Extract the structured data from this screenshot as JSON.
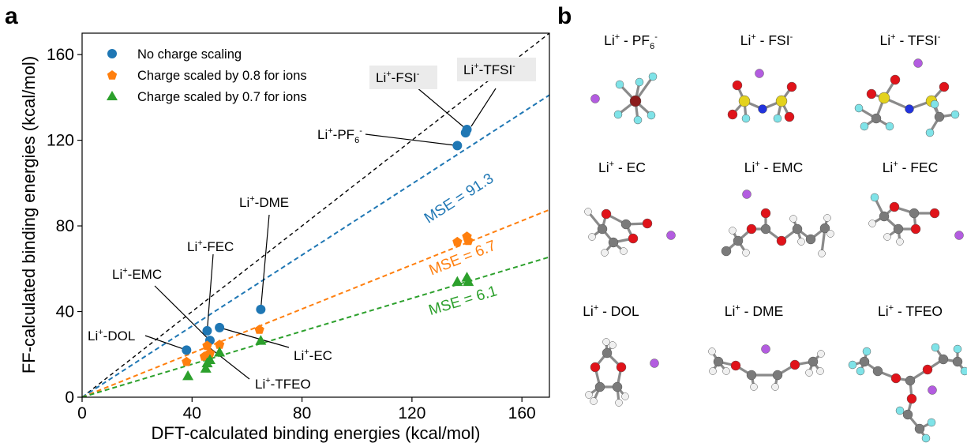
{
  "figure": {
    "panel_a_letter": "a",
    "panel_b_letter": "b"
  },
  "chart_data": {
    "type": "scatter",
    "xlabel": "DFT-calculated binding energies (kcal/mol)",
    "ylabel": "FF-calculated binding energies (kcal/mol)",
    "xlim": [
      0,
      170
    ],
    "ylim": [
      0,
      170
    ],
    "xticks": [
      0,
      40,
      80,
      120,
      160
    ],
    "yticks": [
      0,
      40,
      80,
      120,
      160
    ],
    "grid": false,
    "legend_position": "top-left",
    "series": [
      {
        "name": "No charge scaling",
        "color": "#1f77b4",
        "marker": "circle",
        "points": [
          [
            38.0,
            22.0
          ],
          [
            45.5,
            31.0
          ],
          [
            46.5,
            26.5
          ],
          [
            50.0,
            32.5
          ],
          [
            65.0,
            41.0
          ],
          [
            136.5,
            117.5
          ],
          [
            139.5,
            123.5
          ],
          [
            140.0,
            125.0
          ]
        ]
      },
      {
        "name": "Charge scaled by 0.8 for ions",
        "color": "#ff7f0e",
        "marker": "pentagon",
        "points": [
          [
            38.0,
            16.5
          ],
          [
            44.5,
            19.0
          ],
          [
            45.5,
            24.0
          ],
          [
            46.5,
            20.5
          ],
          [
            50.0,
            24.5
          ],
          [
            64.5,
            31.5
          ],
          [
            136.5,
            72.5
          ],
          [
            140.0,
            75.0
          ],
          [
            140.5,
            73.0
          ]
        ]
      },
      {
        "name": "Charge scaled by 0.7 for ions",
        "color": "#2ca02c",
        "marker": "triangle",
        "points": [
          [
            38.5,
            10.0
          ],
          [
            45.0,
            13.5
          ],
          [
            45.5,
            16.0
          ],
          [
            46.5,
            17.5
          ],
          [
            50.0,
            21.0
          ],
          [
            65.0,
            26.5
          ],
          [
            136.5,
            54.0
          ],
          [
            140.0,
            56.0
          ],
          [
            140.5,
            54.0
          ]
        ]
      }
    ],
    "reference_line": {
      "label": "",
      "color": "#000000",
      "slope": 1.0
    },
    "fit_lines": [
      {
        "series": "No charge scaling",
        "slope": 0.83,
        "mse_label": "MSE = 91.3",
        "label_x": 138,
        "label_y": 91
      },
      {
        "series": "Charge scaled by 0.8 for ions",
        "slope": 0.515,
        "mse_label": "MSE = 6.7",
        "label_x": 139,
        "label_y": 63
      },
      {
        "series": "Charge scaled by 0.7 for ions",
        "slope": 0.385,
        "mse_label": "MSE = 6.1",
        "label_x": 139,
        "label_y": 43
      }
    ],
    "annotations": [
      {
        "id": "fsi",
        "base": "Li",
        "sup": "+",
        "rest": "-FSI",
        "sup2": "-",
        "sub": "",
        "boxed": true
      },
      {
        "id": "tfsi",
        "base": "Li",
        "sup": "+",
        "rest": "-TFSI",
        "sup2": "-",
        "sub": "",
        "boxed": true
      },
      {
        "id": "pf6",
        "base": "Li",
        "sup": "+",
        "rest": "-PF",
        "sub": "6",
        "sup2": "-",
        "boxed": false
      },
      {
        "id": "dme",
        "base": "Li",
        "sup": "+",
        "rest": "-DME",
        "sup2": "",
        "sub": "",
        "boxed": false
      },
      {
        "id": "fec",
        "base": "Li",
        "sup": "+",
        "rest": "-FEC",
        "sup2": "",
        "sub": "",
        "boxed": false
      },
      {
        "id": "emc",
        "base": "Li",
        "sup": "+",
        "rest": "-EMC",
        "sup2": "",
        "sub": "",
        "boxed": false
      },
      {
        "id": "dol",
        "base": "Li",
        "sup": "+",
        "rest": "-DOL",
        "sup2": "",
        "sub": "",
        "boxed": false
      },
      {
        "id": "ec",
        "base": "Li",
        "sup": "+",
        "rest": "-EC",
        "sup2": "",
        "sub": "",
        "boxed": false
      },
      {
        "id": "tfeo",
        "base": "Li",
        "sup": "+",
        "rest": "-TFEO",
        "sup2": "",
        "sub": "",
        "boxed": false
      }
    ]
  },
  "molecules": [
    {
      "id": "pf6",
      "base": "Li",
      "sup": "+",
      "rest": " - PF",
      "sub": "6",
      "sup2": "-"
    },
    {
      "id": "fsi",
      "base": "Li",
      "sup": "+",
      "rest": " - FSI",
      "sub": "",
      "sup2": "-"
    },
    {
      "id": "tfsi",
      "base": "Li",
      "sup": "+",
      "rest": " - TFSI",
      "sub": "",
      "sup2": "-"
    },
    {
      "id": "ec",
      "base": "Li",
      "sup": "+",
      "rest": " - EC",
      "sub": "",
      "sup2": ""
    },
    {
      "id": "emc",
      "base": "Li",
      "sup": "+",
      "rest": " - EMC",
      "sub": "",
      "sup2": ""
    },
    {
      "id": "fec",
      "base": "Li",
      "sup": "+",
      "rest": " - FEC",
      "sub": "",
      "sup2": ""
    },
    {
      "id": "dol",
      "base": "Li",
      "sup": "+",
      "rest": " - DOL",
      "sub": "",
      "sup2": ""
    },
    {
      "id": "dme",
      "base": "Li",
      "sup": "+",
      "rest": " - DME",
      "sub": "",
      "sup2": ""
    },
    {
      "id": "tfeo",
      "base": "Li",
      "sup": "+",
      "rest": " - TFEO",
      "sub": "",
      "sup2": ""
    }
  ],
  "atom_colors": {
    "lithium": "#b35ce0",
    "carbon": "#7a7a7a",
    "oxygen": "#e0131a",
    "hydrogen": "#f0f0f0",
    "fluorine": "#7fe3e8",
    "sulfur": "#e3d21d",
    "nitrogen": "#2233dd",
    "phosphorus": "#8b1a1a"
  }
}
